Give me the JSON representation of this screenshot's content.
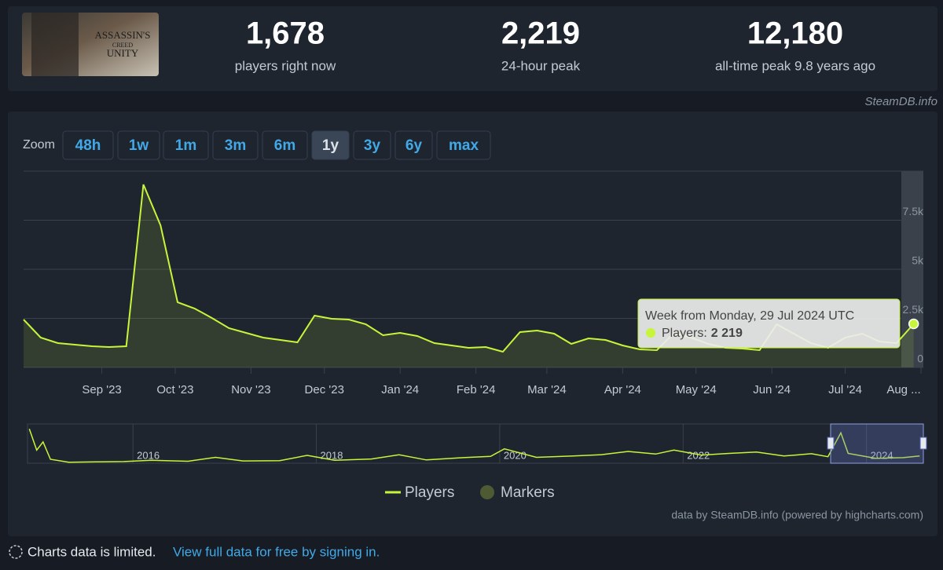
{
  "header": {
    "game_logo": [
      "ASSASSIN'S",
      "CREED",
      "UNITY"
    ],
    "stats": [
      {
        "value": "1,678",
        "label": "players right now"
      },
      {
        "value": "2,219",
        "label": "24-hour peak"
      },
      {
        "value": "12,180",
        "label": "all-time peak 9.8 years ago"
      }
    ],
    "credit": "SteamDB.info"
  },
  "zoom": {
    "label": "Zoom",
    "buttons": [
      "48h",
      "1w",
      "1m",
      "3m",
      "6m",
      "1y",
      "3y",
      "6y",
      "max"
    ],
    "active": 5
  },
  "chart_data": {
    "type": "line",
    "x": [
      "2023-07-31",
      "2023-08-07",
      "2023-08-14",
      "2023-08-21",
      "2023-08-28",
      "2023-09-04",
      "2023-09-11",
      "2023-09-18",
      "2023-09-25",
      "2023-10-02",
      "2023-10-09",
      "2023-10-16",
      "2023-10-23",
      "2023-10-30",
      "2023-11-06",
      "2023-11-13",
      "2023-11-20",
      "2023-11-27",
      "2023-12-04",
      "2023-12-11",
      "2023-12-18",
      "2023-12-25",
      "2024-01-01",
      "2024-01-08",
      "2024-01-15",
      "2024-01-22",
      "2024-01-29",
      "2024-02-05",
      "2024-02-12",
      "2024-02-19",
      "2024-02-26",
      "2024-03-04",
      "2024-03-11",
      "2024-03-18",
      "2024-03-25",
      "2024-04-01",
      "2024-04-08",
      "2024-04-15",
      "2024-04-22",
      "2024-04-29",
      "2024-05-06",
      "2024-05-13",
      "2024-05-20",
      "2024-05-27",
      "2024-06-03",
      "2024-06-10",
      "2024-06-17",
      "2024-06-24",
      "2024-07-01",
      "2024-07-08",
      "2024-07-15",
      "2024-07-22",
      "2024-07-29"
    ],
    "series": [
      {
        "name": "Players",
        "color": "#c6f53a",
        "values": [
          2440,
          1520,
          1240,
          1160,
          1080,
          1040,
          1080,
          9320,
          7240,
          3320,
          3000,
          2520,
          2000,
          1760,
          1520,
          1400,
          1280,
          2640,
          2480,
          2440,
          2200,
          1640,
          1760,
          1600,
          1240,
          1120,
          1000,
          1040,
          800,
          1800,
          1880,
          1720,
          1200,
          1480,
          1400,
          1120,
          920,
          880,
          1760,
          1520,
          1200,
          1000,
          960,
          880,
          2200,
          1720,
          1240,
          1000,
          1520,
          1720,
          1320,
          1240,
          2219
        ]
      }
    ],
    "markers_legend": {
      "name": "Markers",
      "color": "#4d5a33"
    },
    "xlim": [
      "2023-07-31",
      "2024-08-01"
    ],
    "xticks": [
      {
        "value": "2023-09-01",
        "label": "Sep '23"
      },
      {
        "value": "2023-10-01",
        "label": "Oct '23"
      },
      {
        "value": "2023-11-01",
        "label": "Nov '23"
      },
      {
        "value": "2023-12-01",
        "label": "Dec '23"
      },
      {
        "value": "2024-01-01",
        "label": "Jan '24"
      },
      {
        "value": "2024-02-01",
        "label": "Feb '24"
      },
      {
        "value": "2024-03-01",
        "label": "Mar '24"
      },
      {
        "value": "2024-04-01",
        "label": "Apr '24"
      },
      {
        "value": "2024-05-01",
        "label": "May '24"
      },
      {
        "value": "2024-06-01",
        "label": "Jun '24"
      },
      {
        "value": "2024-07-01",
        "label": "Jul '24"
      },
      {
        "value": "2024-08-01",
        "label": "Aug ..."
      }
    ],
    "ylim": [
      0,
      10000
    ],
    "yticks": [
      0,
      {
        "value": 2500,
        "label": "2.5k"
      },
      {
        "value": 5000,
        "label": "5k"
      },
      {
        "value": 7500,
        "label": "7.5k"
      }
    ],
    "grid": true,
    "tooltip": {
      "title": "Week from Monday, 29 Jul 2024 UTC",
      "label": "Players:",
      "value": {
        "value": 2219,
        "label": "2 219"
      }
    },
    "navigator": {
      "x": [
        2014.87,
        2014.95,
        2015.02,
        2015.1,
        2015.3,
        2015.6,
        2015.9,
        2016.2,
        2016.6,
        2016.9,
        2017.2,
        2017.6,
        2017.9,
        2018.2,
        2018.6,
        2018.9,
        2019.2,
        2019.6,
        2019.9,
        2020.05,
        2020.4,
        2020.8,
        2021.1,
        2021.4,
        2021.7,
        2021.9,
        2022.2,
        2022.5,
        2022.8,
        2023.1,
        2023.4,
        2023.58,
        2023.72,
        2023.8,
        2024.1,
        2024.4,
        2024.58
      ],
      "values": [
        10500,
        4000,
        6500,
        1200,
        300,
        400,
        500,
        900,
        600,
        1800,
        700,
        800,
        2400,
        900,
        1300,
        2600,
        1000,
        1700,
        2100,
        4400,
        1800,
        2200,
        2600,
        3600,
        2800,
        4000,
        2500,
        3000,
        3400,
        2200,
        2900,
        2000,
        9300,
        3000,
        1500,
        1700,
        2219
      ],
      "xlim": [
        2014.85,
        2024.62
      ],
      "ylim": [
        0,
        12000
      ],
      "xticks": [
        2016,
        2018,
        2020,
        2022,
        2024
      ]
    }
  },
  "footer": {
    "source": "data by SteamDB.info (powered by highcharts.com)",
    "notice": "Charts data is limited.",
    "link": "View full data for free by signing in."
  }
}
